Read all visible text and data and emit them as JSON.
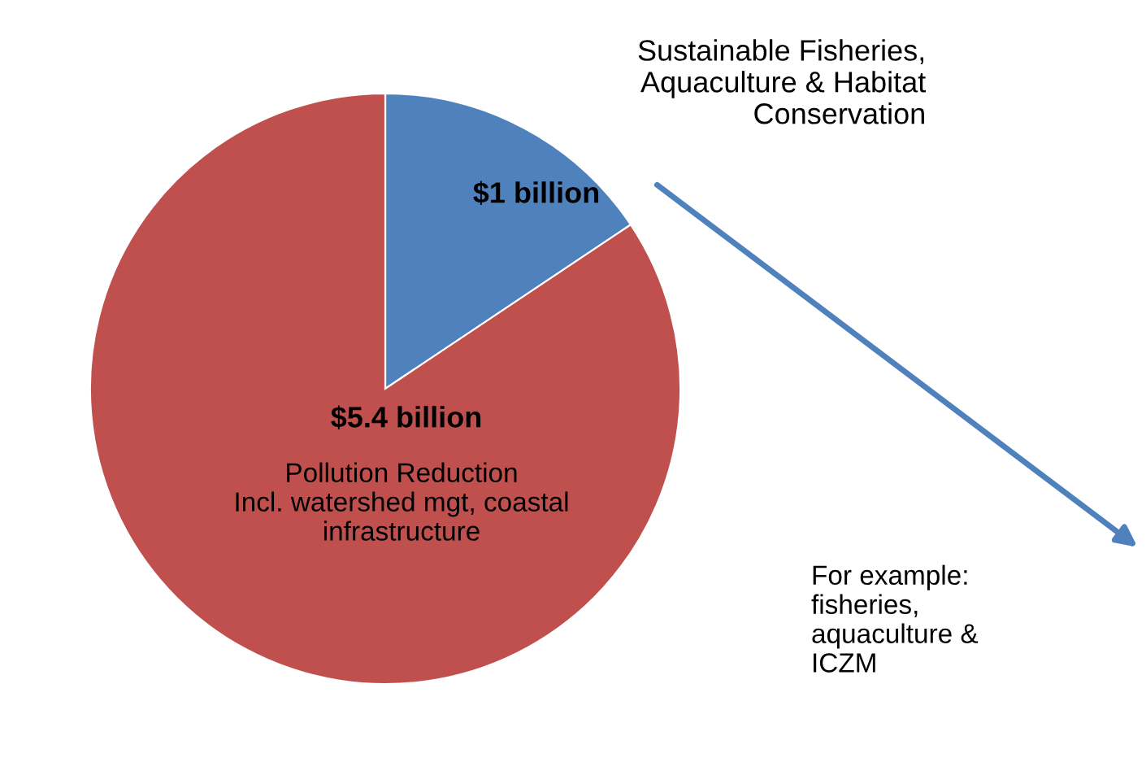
{
  "chart_data": {
    "type": "pie",
    "categories": [
      "Sustainable Fisheries,\nAquaculture & Habitat\nConservation",
      "Pollution Reduction\nIncl. watershed mgt, coastal\ninfrastructure"
    ],
    "values": [
      1,
      5.4
    ],
    "value_labels": [
      "$1 billion",
      "$5.4 billion"
    ],
    "colors": [
      "#4f81bd",
      "#c0504d"
    ],
    "annotations": [
      "For example:\nfisheries,\naquaculture &\nICZM"
    ]
  }
}
